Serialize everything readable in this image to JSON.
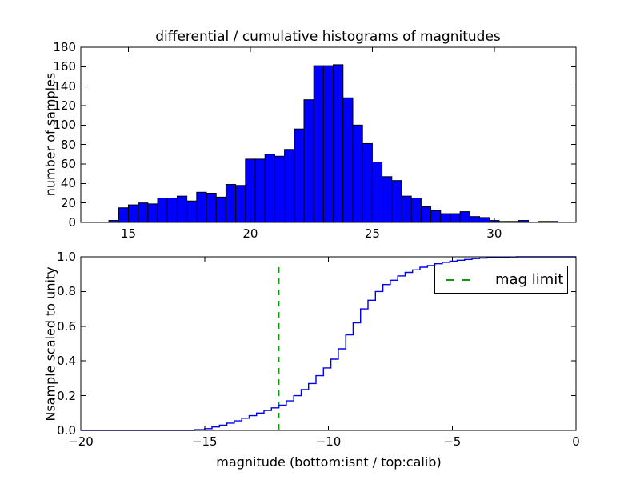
{
  "figure": {
    "title": "differential / cumulative histograms of magnitudes",
    "background": "#ffffff"
  },
  "legend": {
    "label": "mag limit",
    "position": "upper right",
    "border_color": "#000000",
    "background": "#ffffff"
  },
  "colors": {
    "bar_fill": "#0000ff",
    "bar_edge": "#000000",
    "curve_line": "#0000ee",
    "mag_limit_line": "#0a9a0a",
    "axis": "#000000",
    "text": "#000000"
  },
  "chart_data": [
    {
      "type": "bar",
      "subtype": "histogram-differential",
      "title": "differential / cumulative histograms of magnitudes",
      "xlabel": "",
      "ylabel": "number of samples",
      "xlim": [
        13.05,
        33.35
      ],
      "ylim": [
        0,
        180
      ],
      "x_ticks": [
        15,
        20,
        25,
        30
      ],
      "x_tick_labels": [
        "15",
        "20",
        "25",
        "30"
      ],
      "y_ticks": [
        0,
        20,
        40,
        60,
        80,
        100,
        120,
        140,
        160,
        180
      ],
      "y_tick_labels": [
        "0",
        "20",
        "40",
        "60",
        "80",
        "100",
        "120",
        "140",
        "160",
        "180"
      ],
      "grid": false,
      "bin_start": 14.2,
      "bin_width": 0.4,
      "values": [
        2,
        15,
        18,
        20,
        19,
        25,
        25,
        27,
        22,
        31,
        30,
        26,
        39,
        38,
        65,
        65,
        70,
        68,
        75,
        96,
        126,
        161,
        161,
        162,
        128,
        100,
        81,
        62,
        47,
        43,
        27,
        25,
        16,
        12,
        9,
        9,
        11,
        6,
        5,
        2,
        1,
        1,
        2,
        0,
        1,
        1
      ]
    },
    {
      "type": "line",
      "subtype": "histogram-cumulative-step",
      "xlabel": "magnitude (bottom:isnt / top:calib)",
      "ylabel": "Nsample scaled to unity",
      "xlim": [
        -20,
        0
      ],
      "ylim": [
        0.0,
        1.0
      ],
      "x_ticks": [
        -20,
        -15,
        -10,
        -5,
        0
      ],
      "x_tick_labels": [
        "−20",
        "−15",
        "−10",
        "−5",
        "0"
      ],
      "y_ticks": [
        0.0,
        0.2,
        0.4,
        0.6,
        0.8,
        1.0
      ],
      "y_tick_labels": [
        "0.0",
        "0.2",
        "0.4",
        "0.6",
        "0.8",
        "1.0"
      ],
      "grid": false,
      "points": [
        [
          -20,
          0
        ],
        [
          -16,
          0
        ],
        [
          -15.4,
          0.004
        ],
        [
          -15,
          0.01
        ],
        [
          -14.7,
          0.02
        ],
        [
          -14.4,
          0.03
        ],
        [
          -14.1,
          0.042
        ],
        [
          -13.8,
          0.055
        ],
        [
          -13.5,
          0.07
        ],
        [
          -13.2,
          0.085
        ],
        [
          -12.9,
          0.1
        ],
        [
          -12.6,
          0.115
        ],
        [
          -12.3,
          0.13
        ],
        [
          -12,
          0.145
        ],
        [
          -11.7,
          0.17
        ],
        [
          -11.4,
          0.2
        ],
        [
          -11.1,
          0.235
        ],
        [
          -10.8,
          0.27
        ],
        [
          -10.5,
          0.315
        ],
        [
          -10.2,
          0.36
        ],
        [
          -9.9,
          0.41
        ],
        [
          -9.6,
          0.47
        ],
        [
          -9.3,
          0.55
        ],
        [
          -9,
          0.62
        ],
        [
          -8.7,
          0.7
        ],
        [
          -8.4,
          0.75
        ],
        [
          -8.1,
          0.8
        ],
        [
          -7.8,
          0.84
        ],
        [
          -7.5,
          0.865
        ],
        [
          -7.2,
          0.89
        ],
        [
          -6.9,
          0.91
        ],
        [
          -6.6,
          0.925
        ],
        [
          -6.3,
          0.94
        ],
        [
          -6,
          0.95
        ],
        [
          -5.7,
          0.96
        ],
        [
          -5.4,
          0.968
        ],
        [
          -5.1,
          0.975
        ],
        [
          -4.8,
          0.98
        ],
        [
          -4.5,
          0.985
        ],
        [
          -4.2,
          0.99
        ],
        [
          -3.9,
          0.993
        ],
        [
          -3.6,
          0.995
        ],
        [
          -3.3,
          0.997
        ],
        [
          -3,
          0.998
        ],
        [
          -2.7,
          0.999
        ],
        [
          -2.4,
          1.0
        ],
        [
          0,
          1.0
        ]
      ],
      "vline": {
        "x": -12,
        "color": "#0a9a0a",
        "style": "dashed",
        "label": "mag limit"
      },
      "legend_position": "upper right"
    }
  ]
}
